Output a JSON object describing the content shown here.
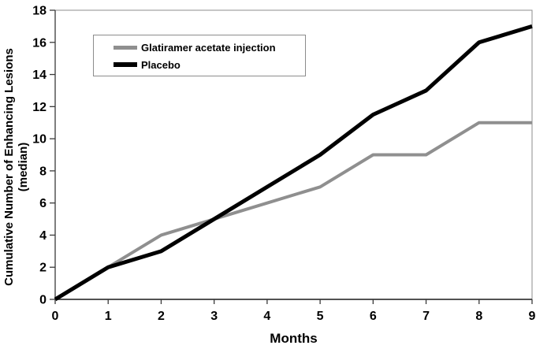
{
  "chart_data": {
    "type": "line",
    "x": [
      0,
      1,
      2,
      3,
      4,
      5,
      6,
      7,
      8,
      9
    ],
    "x_tick_labels": [
      "0",
      "1",
      "2",
      "3",
      "4",
      "5",
      "6",
      "7",
      "8",
      "9"
    ],
    "y_tick_values": [
      0,
      2,
      4,
      6,
      8,
      10,
      12,
      14,
      16,
      18
    ],
    "y_tick_labels": [
      "0",
      "2",
      "4",
      "6",
      "8",
      "10",
      "12",
      "14",
      "16",
      "18"
    ],
    "xlim": [
      0,
      9
    ],
    "ylim": [
      0,
      18
    ],
    "xlabel": "Months",
    "ylabel_line1": "Cumulative Number of Enhancing Lesions",
    "ylabel_line2": "(median)",
    "grid": false,
    "legend_position": "top-left-inside",
    "series": [
      {
        "name": "Glatiramer acetate injection",
        "values": [
          0,
          2,
          4,
          5,
          6,
          7,
          9,
          9,
          11,
          11
        ],
        "color": "#8f8f8f",
        "line_width": 4
      },
      {
        "name": "Placebo",
        "values": [
          0,
          2,
          3,
          5,
          7,
          9,
          11.5,
          13,
          16,
          17
        ],
        "color": "#000000",
        "line_width": 5
      }
    ],
    "colors": {
      "axis": "#3a3a3a",
      "plot_border": "#8c8c8c",
      "legend_border": "#8c8c8c",
      "background": "#ffffff",
      "text": "#000000"
    }
  }
}
